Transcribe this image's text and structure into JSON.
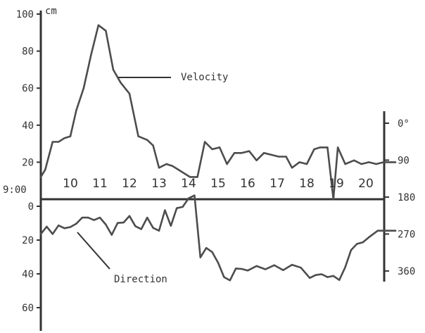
{
  "chart_data": {
    "type": "line",
    "x_unit": "hour",
    "hour_labels": [
      {
        "text": "9:00",
        "hour": 9
      },
      {
        "text": "10",
        "hour": 10
      },
      {
        "text": "11",
        "hour": 11
      },
      {
        "text": "12",
        "hour": 12
      },
      {
        "text": "13",
        "hour": 13
      },
      {
        "text": "14",
        "hour": 14
      },
      {
        "text": "15",
        "hour": 15
      },
      {
        "text": "16",
        "hour": 16
      },
      {
        "text": "17",
        "hour": 17
      },
      {
        "text": "18",
        "hour": 18
      },
      {
        "text": "19",
        "hour": 19
      },
      {
        "text": "20",
        "hour": 20
      }
    ],
    "left_axis": {
      "unit": "cm",
      "upper_range": [
        0,
        100
      ],
      "upper_ticks": [
        "100",
        "80",
        "60",
        "40",
        "20"
      ],
      "lower_ticks": [
        "0",
        "20",
        "40",
        "60"
      ]
    },
    "right_axis": {
      "range_deg": [
        0,
        360
      ],
      "ticks": [
        "0°",
        "90",
        "180",
        "270",
        "360"
      ]
    },
    "series": [
      {
        "name": "Velocity",
        "axis": "left",
        "x": [
          9.0,
          9.15,
          9.4,
          9.6,
          9.8,
          10.0,
          10.2,
          10.45,
          10.7,
          10.95,
          11.2,
          11.45,
          11.7,
          12.0,
          12.3,
          12.6,
          12.8,
          13.0,
          13.25,
          13.45,
          13.65,
          13.85,
          14.05,
          14.3,
          14.55,
          14.8,
          15.05,
          15.3,
          15.55,
          15.8,
          16.05,
          16.3,
          16.55,
          16.8,
          17.05,
          17.3,
          17.5,
          17.75,
          18.0,
          18.25,
          18.45,
          18.7,
          18.9,
          19.05,
          19.3,
          19.6,
          19.85,
          20.1,
          20.35,
          20.6,
          20.85,
          21.0
        ],
        "y": [
          12,
          16,
          31,
          31,
          33,
          34,
          48,
          60,
          78,
          94,
          91,
          70,
          63,
          57,
          34,
          32,
          29,
          17,
          19,
          18,
          16,
          14,
          12,
          12,
          31,
          27,
          28,
          19,
          25,
          25,
          26,
          21,
          25,
          24,
          23,
          23,
          17,
          20,
          19,
          27,
          28,
          28,
          0,
          28,
          19,
          21,
          19,
          20,
          19,
          20,
          20,
          20
        ]
      },
      {
        "name": "Direction",
        "axis": "right",
        "x": [
          9.0,
          9.2,
          9.4,
          9.6,
          9.8,
          10.0,
          10.2,
          10.4,
          10.6,
          10.8,
          11.0,
          11.2,
          11.4,
          11.6,
          11.8,
          12.0,
          12.2,
          12.4,
          12.6,
          12.8,
          13.0,
          13.2,
          13.4,
          13.6,
          13.8,
          14.0,
          14.2,
          14.4,
          14.6,
          14.8,
          15.0,
          15.2,
          15.4,
          15.6,
          15.8,
          16.0,
          16.3,
          16.6,
          16.9,
          17.2,
          17.5,
          17.8,
          18.1,
          18.3,
          18.5,
          18.7,
          18.9,
          19.1,
          19.3,
          19.5,
          19.7,
          19.9,
          20.1,
          20.4,
          20.7,
          21.0
        ],
        "y": [
          270,
          252,
          270,
          249,
          256,
          253,
          245,
          230,
          230,
          236,
          230,
          247,
          272,
          243,
          242,
          226,
          251,
          258,
          230,
          255,
          262,
          212,
          250,
          207,
          204,
          183,
          176,
          327,
          304,
          314,
          340,
          375,
          383,
          354,
          355,
          359,
          348,
          356,
          346,
          358,
          345,
          352,
          377,
          370,
          368,
          375,
          372,
          382,
          351,
          309,
          294,
          290,
          278,
          262,
          262,
          262
        ]
      }
    ]
  }
}
